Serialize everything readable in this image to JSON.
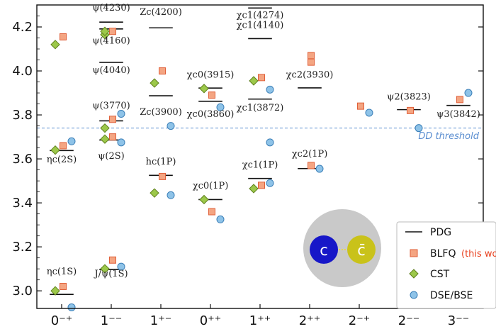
{
  "chart_data": {
    "type": "scatter",
    "ylim": [
      2.92,
      4.3
    ],
    "yticks": [
      "3.0",
      "3.2",
      "3.4",
      "3.6",
      "3.8",
      "4.0",
      "4.2"
    ],
    "categories": [
      "0⁻⁺",
      "1⁻⁻",
      "1⁺⁻",
      "0⁺⁺",
      "1⁺⁺",
      "2⁺⁺",
      "2⁻⁺",
      "2⁻⁻",
      "3⁻⁻"
    ],
    "threshold": {
      "value": 3.74,
      "label": "DD threshold",
      "color": "#5b8ed0"
    },
    "pdg": [
      {
        "cat": 0,
        "y": 2.984
      },
      {
        "cat": 0,
        "y": 3.638
      },
      {
        "cat": 1,
        "y": 3.097
      },
      {
        "cat": 1,
        "y": 3.686
      },
      {
        "cat": 1,
        "y": 3.773
      },
      {
        "cat": 1,
        "y": 4.039
      },
      {
        "cat": 1,
        "y": 4.191
      },
      {
        "cat": 1,
        "y": 4.222
      },
      {
        "cat": 2,
        "y": 3.525
      },
      {
        "cat": 2,
        "y": 3.887
      },
      {
        "cat": 2,
        "y": 4.196
      },
      {
        "cat": 3,
        "y": 3.415
      },
      {
        "cat": 3,
        "y": 3.862
      },
      {
        "cat": 3,
        "y": 3.922
      },
      {
        "cat": 4,
        "y": 3.511
      },
      {
        "cat": 4,
        "y": 3.872
      },
      {
        "cat": 4,
        "y": 4.147
      },
      {
        "cat": 4,
        "y": 4.286
      },
      {
        "cat": 5,
        "y": 3.556
      },
      {
        "cat": 5,
        "y": 3.923
      },
      {
        "cat": 7,
        "y": 3.824
      },
      {
        "cat": 8,
        "y": 3.843
      }
    ],
    "series": [
      {
        "name": "BLFQ",
        "marker": "square",
        "color": "#f4a582",
        "stroke": "#e0603a",
        "points": [
          {
            "cat": 0,
            "y": 3.02
          },
          {
            "cat": 0,
            "y": 3.66
          },
          {
            "cat": 0,
            "y": 4.155
          },
          {
            "cat": 1,
            "y": 3.14
          },
          {
            "cat": 1,
            "y": 3.7
          },
          {
            "cat": 1,
            "y": 3.78
          },
          {
            "cat": 1,
            "y": 4.18
          },
          {
            "cat": 2,
            "y": 3.52
          },
          {
            "cat": 2,
            "y": 4.0
          },
          {
            "cat": 3,
            "y": 3.36
          },
          {
            "cat": 3,
            "y": 3.89
          },
          {
            "cat": 4,
            "y": 3.48
          },
          {
            "cat": 4,
            "y": 3.97
          },
          {
            "cat": 5,
            "y": 3.57
          },
          {
            "cat": 5,
            "y": 4.04
          },
          {
            "cat": 5,
            "y": 4.07
          },
          {
            "cat": 6,
            "y": 3.84
          },
          {
            "cat": 7,
            "y": 3.82
          },
          {
            "cat": 8,
            "y": 3.87
          }
        ]
      },
      {
        "name": "CST",
        "marker": "diamond",
        "color": "#9cc84a",
        "stroke": "#5e7f1c",
        "points": [
          {
            "cat": 0,
            "y": 3.0
          },
          {
            "cat": 0,
            "y": 3.64
          },
          {
            "cat": 0,
            "y": 4.12
          },
          {
            "cat": 1,
            "y": 3.1
          },
          {
            "cat": 1,
            "y": 3.69
          },
          {
            "cat": 1,
            "y": 3.74
          },
          {
            "cat": 1,
            "y": 4.165
          },
          {
            "cat": 1,
            "y": 4.18
          },
          {
            "cat": 2,
            "y": 3.445
          },
          {
            "cat": 2,
            "y": 3.945
          },
          {
            "cat": 3,
            "y": 3.415
          },
          {
            "cat": 3,
            "y": 3.92
          },
          {
            "cat": 4,
            "y": 3.465
          },
          {
            "cat": 4,
            "y": 3.955
          }
        ]
      },
      {
        "name": "DSE/BSE",
        "marker": "circle",
        "color": "#8ec3e8",
        "stroke": "#3b7fb8",
        "points": [
          {
            "cat": 0,
            "y": 2.925
          },
          {
            "cat": 0,
            "y": 3.68
          },
          {
            "cat": 1,
            "y": 3.11
          },
          {
            "cat": 1,
            "y": 3.675
          },
          {
            "cat": 1,
            "y": 3.805
          },
          {
            "cat": 2,
            "y": 3.435
          },
          {
            "cat": 2,
            "y": 3.75
          },
          {
            "cat": 3,
            "y": 3.325
          },
          {
            "cat": 3,
            "y": 3.835
          },
          {
            "cat": 4,
            "y": 3.49
          },
          {
            "cat": 4,
            "y": 3.675
          },
          {
            "cat": 4,
            "y": 3.915
          },
          {
            "cat": 5,
            "y": 3.555
          },
          {
            "cat": 6,
            "y": 3.81
          },
          {
            "cat": 7,
            "y": 3.74
          },
          {
            "cat": 8,
            "y": 3.9
          }
        ]
      }
    ],
    "state_labels": [
      {
        "text": "ηc(1S)",
        "cat": 0,
        "y": 3.075
      },
      {
        "text": "ηc(2S)",
        "cat": 0,
        "y": 3.585
      },
      {
        "text": "J/ψ(1S)",
        "cat": 1,
        "y": 3.065
      },
      {
        "text": "ψ(2S)",
        "cat": 1,
        "y": 3.6
      },
      {
        "text": "ψ(3770)",
        "cat": 1,
        "y": 3.83
      },
      {
        "text": "ψ(4040)",
        "cat": 1,
        "y": 3.99
      },
      {
        "text": "ψ(4160)",
        "cat": 1,
        "y": 4.125
      },
      {
        "text": "ψ(4230)",
        "cat": 1,
        "y": 4.275
      },
      {
        "text": "hc(1P)",
        "cat": 2,
        "y": 3.575
      },
      {
        "text": "Zc(3900)",
        "cat": 2,
        "y": 3.8
      },
      {
        "text": "Zc(4200)",
        "cat": 2,
        "y": 4.255
      },
      {
        "text": "χc0(1P)",
        "cat": 3,
        "y": 3.465
      },
      {
        "text": "χc0(3860)",
        "cat": 3,
        "y": 3.79
      },
      {
        "text": "χc0(3915)",
        "cat": 3,
        "y": 3.97
      },
      {
        "text": "χc1(1P)",
        "cat": 4,
        "y": 3.56
      },
      {
        "text": "χc1(3872)",
        "cat": 4,
        "y": 3.82
      },
      {
        "text": "χc1(4140)",
        "cat": 4,
        "y": 4.195
      },
      {
        "text": "χc1(4274)",
        "cat": 4,
        "y": 4.24
      },
      {
        "text": "χc2(1P)",
        "cat": 5,
        "y": 3.61
      },
      {
        "text": "χc2(3930)",
        "cat": 5,
        "y": 3.97
      },
      {
        "text": "ψ2(3823)",
        "cat": 7,
        "y": 3.87
      },
      {
        "text": "ψ3(3842)",
        "cat": 8,
        "y": 3.79
      }
    ],
    "legend": {
      "position": "bottom-right",
      "entries": [
        "PDG",
        "BLFQ",
        "CST",
        "DSE/BSE"
      ],
      "note": "(this wo",
      "note_color": "#e8411f"
    },
    "inset": {
      "quark": "c",
      "antiquark": "c̄",
      "quark_color": "#1717c8",
      "antiquark_color": "#c9c21a"
    }
  }
}
